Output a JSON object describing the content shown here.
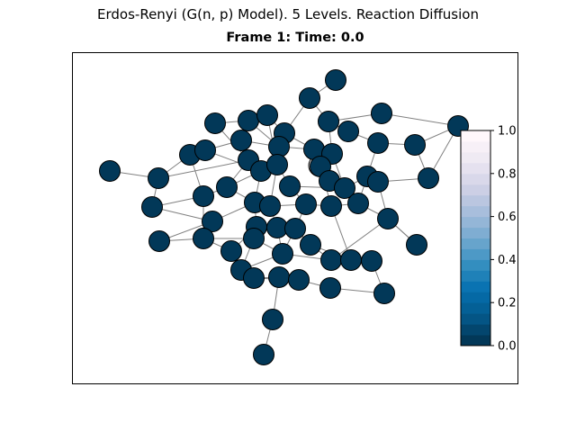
{
  "suptitle": "Erdos-Renyi (G(n, p) Model). 5 Levels. Reaction Diffusion",
  "frame_title": "Frame 1: Time: 0.0",
  "colors": {
    "node_fill": "#023858",
    "node_edge": "#000000",
    "edge": "#808080",
    "colormap": "PuBu_r"
  },
  "chart_data": {
    "type": "network",
    "colorbar": {
      "min": 0.0,
      "max": 1.0,
      "ticks": [
        "0.0",
        "0.2",
        "0.4",
        "0.6",
        "0.8",
        "1.0"
      ],
      "levels": 20
    },
    "node_state_value": 0.0,
    "node_count": 60
  }
}
